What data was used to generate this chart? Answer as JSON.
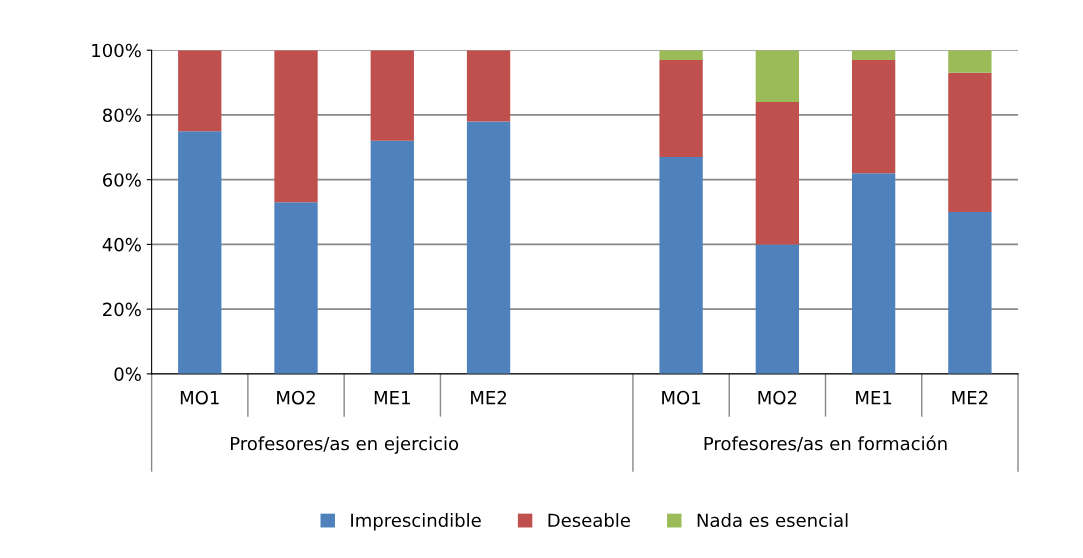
{
  "chart_data": {
    "type": "bar",
    "stacked": true,
    "categories": [
      "MO1",
      "MO2",
      "ME1",
      "ME2",
      null,
      "MO1",
      "MO2",
      "ME1",
      "ME2"
    ],
    "series": [
      {
        "name": "Imprescindible",
        "color": "#4f81bd",
        "values": [
          75,
          53,
          72,
          78,
          null,
          67,
          40,
          62,
          50
        ]
      },
      {
        "name": "Deseable",
        "color": "#c0504d",
        "values": [
          25,
          47,
          28,
          22,
          null,
          30,
          44,
          35,
          43
        ]
      },
      {
        "name": "Nada es esencial",
        "color": "#9bbb59",
        "values": [
          0,
          0,
          0,
          0,
          null,
          3,
          16,
          3,
          7
        ]
      }
    ],
    "ylim": [
      0,
      100
    ],
    "yticks": [
      {
        "value": 0,
        "label": "0%"
      },
      {
        "value": 20,
        "label": "20%"
      },
      {
        "value": 40,
        "label": "40%"
      },
      {
        "value": 60,
        "label": "60%"
      },
      {
        "value": 80,
        "label": "80%"
      },
      {
        "value": 100,
        "label": "100%"
      }
    ],
    "grid": "y",
    "legend": "bottom",
    "annotations": [
      "Profesores/as en ejercicio",
      "Profesores/as en formación"
    ]
  }
}
